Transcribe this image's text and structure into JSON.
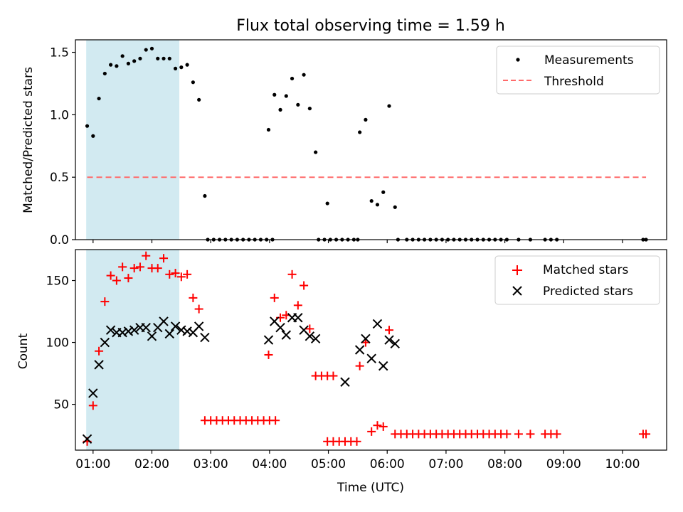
{
  "chart_data": [
    {
      "type": "scatter",
      "title": "Flux total observing time = 1.59 h",
      "ylabel": "Matched/Predicted stars",
      "xlabel": "",
      "xlim": [
        "00:42",
        "10:45"
      ],
      "ylim": [
        0,
        1.6
      ],
      "yticks": [
        {
          "value": 0,
          "label": "0.0"
        },
        {
          "value": 0.5,
          "label": "0.5"
        },
        {
          "value": 1.0,
          "label": "1.0"
        },
        {
          "value": 1.5,
          "label": "1.5"
        }
      ],
      "shaded_span": {
        "x_start": "00:53",
        "x_end": "02:28",
        "color": "#add8e6"
      },
      "legend_placement": "top-right",
      "series": [
        {
          "name": "Measurements",
          "kind": "points",
          "color": "#000000",
          "points": [
            [
              "00:54",
              0.91
            ],
            [
              "01:00",
              0.83
            ],
            [
              "01:06",
              1.13
            ],
            [
              "01:12",
              1.33
            ],
            [
              "01:18",
              1.4
            ],
            [
              "01:24",
              1.39
            ],
            [
              "01:30",
              1.47
            ],
            [
              "01:36",
              1.41
            ],
            [
              "01:42",
              1.43
            ],
            [
              "01:48",
              1.45
            ],
            [
              "01:54",
              1.52
            ],
            [
              "02:00",
              1.53
            ],
            [
              "02:06",
              1.45
            ],
            [
              "02:12",
              1.45
            ],
            [
              "02:18",
              1.45
            ],
            [
              "02:24",
              1.37
            ],
            [
              "02:30",
              1.38
            ],
            [
              "02:36",
              1.4
            ],
            [
              "02:42",
              1.26
            ],
            [
              "02:48",
              1.12
            ],
            [
              "02:54",
              0.35
            ],
            [
              "02:57",
              0.0
            ],
            [
              "03:03",
              0.0
            ],
            [
              "03:09",
              0.0
            ],
            [
              "03:15",
              0.0
            ],
            [
              "03:21",
              0.0
            ],
            [
              "03:27",
              0.0
            ],
            [
              "03:33",
              0.0
            ],
            [
              "03:39",
              0.0
            ],
            [
              "03:45",
              0.0
            ],
            [
              "03:51",
              0.0
            ],
            [
              "03:57",
              0.0
            ],
            [
              "04:03",
              0.0
            ],
            [
              "03:59",
              0.88
            ],
            [
              "04:05",
              1.16
            ],
            [
              "04:11",
              1.04
            ],
            [
              "04:17",
              1.15
            ],
            [
              "04:23",
              1.29
            ],
            [
              "04:29",
              1.08
            ],
            [
              "04:35",
              1.32
            ],
            [
              "04:41",
              1.05
            ],
            [
              "04:47",
              0.7
            ],
            [
              "04:50",
              0.0
            ],
            [
              "04:56",
              0.0
            ],
            [
              "05:02",
              0.0
            ],
            [
              "05:08",
              0.0
            ],
            [
              "05:14",
              0.0
            ],
            [
              "05:20",
              0.0
            ],
            [
              "05:26",
              0.0
            ],
            [
              "05:30",
              0.0
            ],
            [
              "04:59",
              0.29
            ],
            [
              "05:32",
              0.86
            ],
            [
              "05:38",
              0.96
            ],
            [
              "05:44",
              0.31
            ],
            [
              "05:50",
              0.28
            ],
            [
              "05:56",
              0.38
            ],
            [
              "06:02",
              1.07
            ],
            [
              "06:08",
              0.26
            ],
            [
              "06:11",
              0.0
            ],
            [
              "06:20",
              0.0
            ],
            [
              "06:26",
              0.0
            ],
            [
              "06:32",
              0.0
            ],
            [
              "06:38",
              0.0
            ],
            [
              "06:44",
              0.0
            ],
            [
              "06:50",
              0.0
            ],
            [
              "06:56",
              0.0
            ],
            [
              "07:02",
              0.0
            ],
            [
              "07:08",
              0.0
            ],
            [
              "07:14",
              0.0
            ],
            [
              "07:20",
              0.0
            ],
            [
              "07:26",
              0.0
            ],
            [
              "07:32",
              0.0
            ],
            [
              "07:38",
              0.0
            ],
            [
              "07:44",
              0.0
            ],
            [
              "07:50",
              0.0
            ],
            [
              "07:56",
              0.0
            ],
            [
              "08:02",
              0.0
            ],
            [
              "08:14",
              0.0
            ],
            [
              "08:26",
              0.0
            ],
            [
              "08:41",
              0.0
            ],
            [
              "08:47",
              0.0
            ],
            [
              "08:53",
              0.0
            ],
            [
              "10:21",
              0.0
            ],
            [
              "10:24",
              0.0
            ]
          ]
        },
        {
          "name": "Threshold",
          "kind": "dashed-line",
          "color": "#ff6b6b",
          "points": [
            [
              "00:54",
              0.5
            ],
            [
              "10:24",
              0.5
            ]
          ]
        }
      ]
    },
    {
      "type": "scatter",
      "title": "",
      "ylabel": "Count",
      "xlabel": "Time (UTC)",
      "xlim": [
        "00:42",
        "10:45"
      ],
      "ylim": [
        13,
        175
      ],
      "yticks": [
        {
          "value": 50,
          "label": "50"
        },
        {
          "value": 100,
          "label": "100"
        },
        {
          "value": 150,
          "label": "150"
        }
      ],
      "xticks": [
        "01:00",
        "02:00",
        "03:00",
        "04:00",
        "05:00",
        "06:00",
        "07:00",
        "08:00",
        "09:00",
        "10:00"
      ],
      "shaded_span": {
        "x_start": "00:53",
        "x_end": "02:28",
        "color": "#add8e6"
      },
      "legend_placement": "top-right",
      "series": [
        {
          "name": "Matched stars",
          "kind": "plus",
          "color": "#ff0000",
          "points": [
            [
              "00:54",
              20
            ],
            [
              "01:00",
              49
            ],
            [
              "01:06",
              93
            ],
            [
              "01:12",
              133
            ],
            [
              "01:18",
              154
            ],
            [
              "01:24",
              150
            ],
            [
              "01:30",
              161
            ],
            [
              "01:36",
              152
            ],
            [
              "01:42",
              160
            ],
            [
              "01:48",
              161
            ],
            [
              "01:54",
              170
            ],
            [
              "02:00",
              160
            ],
            [
              "02:06",
              160
            ],
            [
              "02:12",
              168
            ],
            [
              "02:18",
              155
            ],
            [
              "02:24",
              156
            ],
            [
              "02:30",
              153
            ],
            [
              "02:36",
              155
            ],
            [
              "02:42",
              136
            ],
            [
              "02:48",
              127
            ],
            [
              "02:54",
              37
            ],
            [
              "03:00",
              37
            ],
            [
              "03:06",
              37
            ],
            [
              "03:12",
              37
            ],
            [
              "03:18",
              37
            ],
            [
              "03:24",
              37
            ],
            [
              "03:30",
              37
            ],
            [
              "03:36",
              37
            ],
            [
              "03:42",
              37
            ],
            [
              "03:48",
              37
            ],
            [
              "03:54",
              37
            ],
            [
              "04:00",
              37
            ],
            [
              "04:06",
              37
            ],
            [
              "03:59",
              90
            ],
            [
              "04:05",
              136
            ],
            [
              "04:11",
              120
            ],
            [
              "04:17",
              122
            ],
            [
              "04:23",
              155
            ],
            [
              "04:29",
              130
            ],
            [
              "04:35",
              146
            ],
            [
              "04:41",
              111
            ],
            [
              "04:47",
              73
            ],
            [
              "04:53",
              73
            ],
            [
              "04:59",
              73
            ],
            [
              "05:05",
              73
            ],
            [
              "04:59",
              20
            ],
            [
              "05:05",
              20
            ],
            [
              "05:11",
              20
            ],
            [
              "05:17",
              20
            ],
            [
              "05:23",
              20
            ],
            [
              "05:29",
              20
            ],
            [
              "05:32",
              81
            ],
            [
              "05:38",
              100
            ],
            [
              "05:44",
              28
            ],
            [
              "05:50",
              33
            ],
            [
              "05:56",
              32
            ],
            [
              "06:02",
              110
            ],
            [
              "06:08",
              26
            ],
            [
              "06:14",
              26
            ],
            [
              "06:20",
              26
            ],
            [
              "06:26",
              26
            ],
            [
              "06:32",
              26
            ],
            [
              "06:38",
              26
            ],
            [
              "06:44",
              26
            ],
            [
              "06:50",
              26
            ],
            [
              "06:56",
              26
            ],
            [
              "07:02",
              26
            ],
            [
              "07:08",
              26
            ],
            [
              "07:14",
              26
            ],
            [
              "07:20",
              26
            ],
            [
              "07:26",
              26
            ],
            [
              "07:32",
              26
            ],
            [
              "07:38",
              26
            ],
            [
              "07:44",
              26
            ],
            [
              "07:50",
              26
            ],
            [
              "07:56",
              26
            ],
            [
              "08:02",
              26
            ],
            [
              "08:14",
              26
            ],
            [
              "08:26",
              26
            ],
            [
              "08:41",
              26
            ],
            [
              "08:47",
              26
            ],
            [
              "08:53",
              26
            ],
            [
              "10:21",
              26
            ],
            [
              "10:24",
              26
            ]
          ]
        },
        {
          "name": "Predicted stars",
          "kind": "x",
          "color": "#000000",
          "points": [
            [
              "00:54",
              22
            ],
            [
              "01:00",
              59
            ],
            [
              "01:06",
              82
            ],
            [
              "01:12",
              100
            ],
            [
              "01:18",
              110
            ],
            [
              "01:24",
              108
            ],
            [
              "01:30",
              108
            ],
            [
              "01:36",
              109
            ],
            [
              "01:42",
              110
            ],
            [
              "01:48",
              112
            ],
            [
              "01:54",
              112
            ],
            [
              "02:00",
              105
            ],
            [
              "02:06",
              112
            ],
            [
              "02:12",
              117
            ],
            [
              "02:18",
              107
            ],
            [
              "02:24",
              113
            ],
            [
              "02:30",
              110
            ],
            [
              "02:36",
              109
            ],
            [
              "02:42",
              108
            ],
            [
              "02:48",
              113
            ],
            [
              "02:54",
              104
            ],
            [
              "03:59",
              102
            ],
            [
              "04:05",
              117
            ],
            [
              "04:11",
              112
            ],
            [
              "04:17",
              106
            ],
            [
              "04:23",
              120
            ],
            [
              "04:29",
              120
            ],
            [
              "04:35",
              110
            ],
            [
              "04:41",
              105
            ],
            [
              "04:47",
              103
            ],
            [
              "05:17",
              68
            ],
            [
              "05:32",
              94
            ],
            [
              "05:38",
              103
            ],
            [
              "05:44",
              87
            ],
            [
              "05:50",
              115
            ],
            [
              "05:56",
              81
            ],
            [
              "06:02",
              102
            ],
            [
              "06:08",
              99
            ]
          ]
        }
      ]
    }
  ]
}
